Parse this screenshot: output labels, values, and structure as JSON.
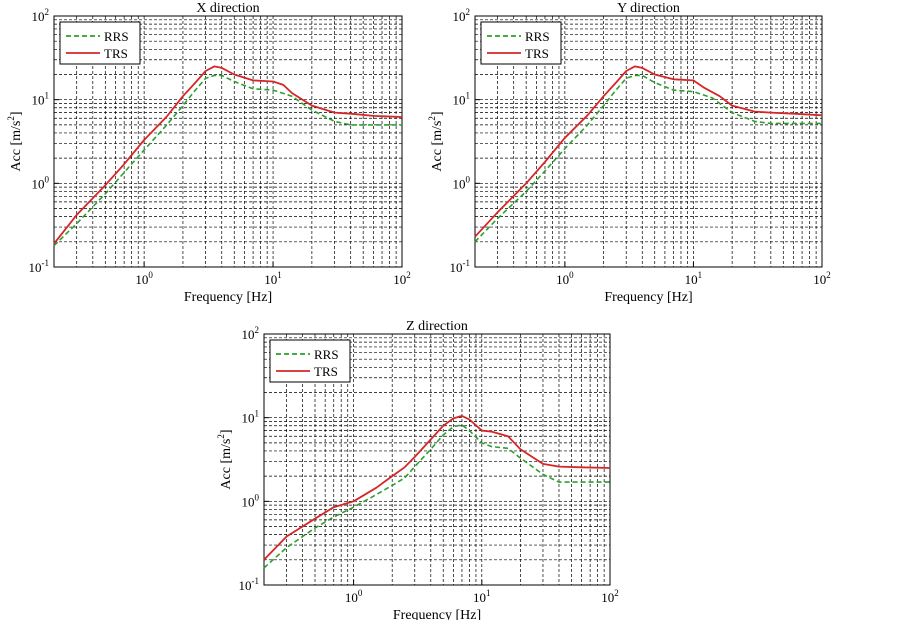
{
  "chart_data": [
    {
      "type": "line",
      "title": "X direction",
      "xlabel": "Frequency [Hz]",
      "ylabel": "Acc [m/s²]",
      "xscale": "log",
      "yscale": "log",
      "xlim": [
        0.2,
        100
      ],
      "ylim": [
        0.1,
        100
      ],
      "xtick_labels": [
        "10^0",
        "10^1",
        "10^2"
      ],
      "ytick_labels": [
        "10^-1",
        "10^0",
        "10^1",
        "10^2"
      ],
      "grid": true,
      "legend": "top-left",
      "series": [
        {
          "name": "RRS",
          "color": "#2ca02c",
          "style": "dashed",
          "x": [
            0.2,
            0.3,
            0.5,
            0.7,
            1.0,
            1.5,
            2.0,
            2.5,
            3.0,
            3.5,
            4.0,
            5.0,
            7.0,
            10.0,
            14.0,
            20.0,
            30.0,
            40.0,
            60.0,
            100.0
          ],
          "y": [
            0.18,
            0.33,
            0.75,
            1.35,
            2.5,
            5.0,
            8.5,
            13.0,
            18.0,
            19.5,
            19.5,
            16.5,
            13.5,
            13.0,
            11.0,
            7.5,
            5.5,
            5.0,
            5.0,
            5.0
          ]
        },
        {
          "name": "TRS",
          "color": "#d62728",
          "style": "solid",
          "x": [
            0.2,
            0.3,
            0.5,
            0.7,
            1.0,
            1.5,
            2.0,
            2.5,
            3.0,
            3.5,
            4.0,
            5.0,
            7.0,
            10.0,
            12.0,
            14.0,
            20.0,
            30.0,
            40.0,
            60.0,
            100.0
          ],
          "y": [
            0.19,
            0.42,
            0.95,
            1.7,
            3.3,
            6.3,
            11.0,
            16.0,
            22.0,
            25.0,
            24.0,
            20.0,
            17.0,
            16.5,
            15.0,
            12.0,
            8.5,
            7.0,
            6.8,
            6.4,
            6.2
          ]
        }
      ]
    },
    {
      "type": "line",
      "title": "Y direction",
      "xlabel": "Frequency [Hz]",
      "ylabel": "Acc [m/s²]",
      "xscale": "log",
      "yscale": "log",
      "xlim": [
        0.2,
        100
      ],
      "ylim": [
        0.1,
        100
      ],
      "xtick_labels": [
        "10^0",
        "10^1",
        "10^2"
      ],
      "ytick_labels": [
        "10^-1",
        "10^0",
        "10^1",
        "10^2"
      ],
      "grid": true,
      "legend": "top-left",
      "series": [
        {
          "name": "RRS",
          "color": "#2ca02c",
          "style": "dashed",
          "x": [
            0.2,
            0.3,
            0.5,
            0.7,
            1.0,
            1.5,
            2.0,
            2.5,
            3.0,
            3.5,
            4.0,
            5.0,
            7.0,
            10.0,
            14.0,
            20.0,
            30.0,
            40.0,
            60.0,
            100.0
          ],
          "y": [
            0.2,
            0.38,
            0.8,
            1.4,
            2.6,
            5.0,
            8.5,
            13.0,
            18.0,
            19.5,
            19.5,
            16.0,
            13.0,
            12.5,
            10.5,
            7.0,
            5.5,
            5.2,
            5.2,
            5.2
          ]
        },
        {
          "name": "TRS",
          "color": "#d62728",
          "style": "solid",
          "x": [
            0.2,
            0.3,
            0.5,
            0.7,
            1.0,
            1.5,
            2.0,
            2.5,
            3.0,
            3.5,
            4.0,
            5.0,
            7.0,
            10.0,
            12.0,
            16.0,
            20.0,
            30.0,
            40.0,
            60.0,
            100.0
          ],
          "y": [
            0.23,
            0.45,
            1.0,
            1.8,
            3.5,
            6.5,
            11.0,
            16.0,
            22.0,
            25.0,
            24.0,
            20.0,
            17.5,
            17.0,
            14.0,
            11.0,
            8.5,
            7.2,
            7.0,
            6.8,
            6.5
          ]
        }
      ]
    },
    {
      "type": "line",
      "title": "Z direction",
      "xlabel": "Frequency [Hz]",
      "ylabel": "Acc [m/s²]",
      "xscale": "log",
      "yscale": "log",
      "xlim": [
        0.2,
        100
      ],
      "ylim": [
        0.1,
        100
      ],
      "xtick_labels": [
        "10^0",
        "10^1",
        "10^2"
      ],
      "ytick_labels": [
        "10^-1",
        "10^0",
        "10^1",
        "10^2"
      ],
      "grid": true,
      "legend": "top-left",
      "series": [
        {
          "name": "RRS",
          "color": "#2ca02c",
          "style": "dashed",
          "x": [
            0.2,
            0.3,
            0.5,
            0.7,
            1.0,
            1.5,
            2.0,
            2.5,
            3.0,
            4.0,
            5.0,
            6.0,
            7.0,
            8.0,
            10.0,
            12.0,
            16.0,
            20.0,
            30.0,
            40.0,
            60.0,
            100.0
          ],
          "y": [
            0.16,
            0.28,
            0.48,
            0.65,
            0.85,
            1.2,
            1.55,
            1.9,
            2.6,
            4.2,
            6.2,
            7.8,
            8.2,
            7.0,
            5.0,
            4.5,
            4.3,
            3.3,
            2.1,
            1.7,
            1.7,
            1.7
          ]
        },
        {
          "name": "TRS",
          "color": "#d62728",
          "style": "solid",
          "x": [
            0.2,
            0.3,
            0.5,
            0.7,
            1.0,
            1.5,
            2.0,
            2.5,
            3.0,
            4.0,
            5.0,
            6.0,
            7.0,
            8.0,
            10.0,
            12.0,
            16.0,
            20.0,
            30.0,
            40.0,
            60.0,
            100.0
          ],
          "y": [
            0.2,
            0.38,
            0.62,
            0.85,
            1.0,
            1.45,
            2.0,
            2.55,
            3.4,
            5.5,
            8.0,
            9.8,
            10.5,
            9.5,
            7.0,
            6.8,
            6.0,
            4.2,
            2.8,
            2.6,
            2.55,
            2.5
          ]
        }
      ]
    }
  ]
}
